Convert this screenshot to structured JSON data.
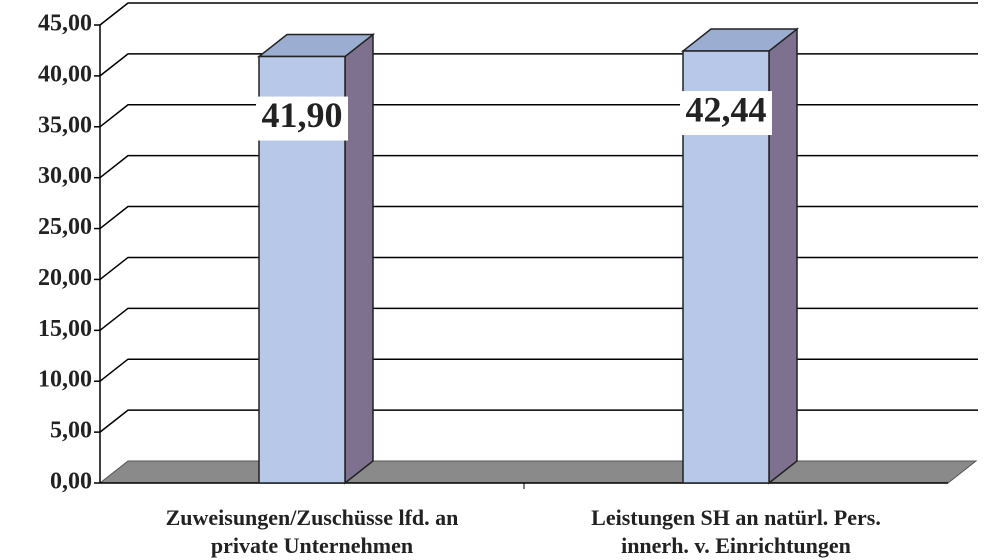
{
  "chart_data": {
    "type": "bar3d",
    "categories": [
      "Zuweisungen/Zuschüsse lfd. an private Unternehmen",
      "Leistungen SH an natürl. Pers. innerh. v. Einrichtungen"
    ],
    "values": [
      41.9,
      42.44
    ],
    "value_labels": [
      "41,90",
      "42,44"
    ],
    "color": "#b7c8e8",
    "ylim": [
      0,
      45
    ],
    "yticks": [
      {
        "value": 0,
        "label": "0,00"
      },
      {
        "value": 5,
        "label": "5,00"
      },
      {
        "value": 10,
        "label": "10,00"
      },
      {
        "value": 15,
        "label": "15,00"
      },
      {
        "value": 20,
        "label": "20,00"
      },
      {
        "value": 25,
        "label": "25,00"
      },
      {
        "value": 30,
        "label": "30,00"
      },
      {
        "value": 35,
        "label": "35,00"
      },
      {
        "value": 40,
        "label": "40,00"
      },
      {
        "value": 45,
        "label": "45,00"
      }
    ],
    "grid": true
  }
}
